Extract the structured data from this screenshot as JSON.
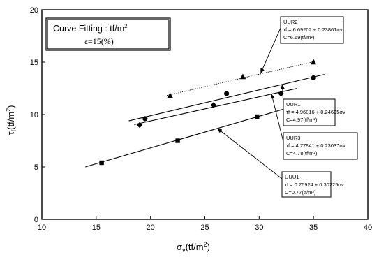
{
  "chart_data": {
    "type": "scatter",
    "title": "Curve Fitting : tf/m²",
    "subtitle": "ε=15(%)",
    "xlabel": "σv(tf/m²)",
    "ylabel": "τf(tf/m²)",
    "xlim": [
      10,
      40
    ],
    "ylim": [
      0,
      20
    ],
    "xticks": [
      "10",
      "15",
      "20",
      "25",
      "30",
      "35",
      "40"
    ],
    "yticks": [
      "0",
      "5",
      "10",
      "15",
      "20"
    ],
    "grid": false,
    "series": [
      {
        "name": "UUR2",
        "marker": "triangle",
        "line_style": "dotted",
        "x": [
          21.8,
          28.5,
          35.0
        ],
        "y": [
          11.8,
          13.6,
          15.0
        ],
        "fit": {
          "intercept": 6.69202,
          "slope": 0.23861,
          "x_range": [
            21.5,
            35.0
          ]
        },
        "equation": "τf = 6.69202 + 0.23861σv",
        "cohesion": "C=6.69(tf/m²)"
      },
      {
        "name": "UUR1",
        "marker": "circle",
        "line_style": "solid",
        "x": [
          19.5,
          27.0,
          35.0
        ],
        "y": [
          9.6,
          12.0,
          13.5
        ],
        "fit": {
          "intercept": 4.96816,
          "slope": 0.24605,
          "x_range": [
            18.0,
            36.0
          ]
        },
        "equation": "τf = 4.96816 + 0.24605σv",
        "cohesion": "C=4.97(tf/m²)"
      },
      {
        "name": "UUR3",
        "marker": "diamond",
        "line_style": "solid",
        "x": [
          19.0,
          25.8,
          32.0
        ],
        "y": [
          9.0,
          10.9,
          12.0
        ],
        "fit": {
          "intercept": 4.77941,
          "slope": 0.23037,
          "x_range": [
            18.5,
            33.5
          ]
        },
        "equation": "τf = 4.77941 + 0.23037σv",
        "cohesion": "C=4.78(tf/m²)"
      },
      {
        "name": "UUU1",
        "marker": "square",
        "line_style": "solid",
        "x": [
          15.5,
          22.5,
          29.8
        ],
        "y": [
          5.4,
          7.5,
          9.8
        ],
        "fit": {
          "intercept": 0.76924,
          "slope": 0.30225,
          "x_range": [
            14.0,
            33.5
          ]
        },
        "equation": "τf = 0.76924 + 0.30225σv",
        "cohesion": "C=0.77(tf/m²)"
      }
    ]
  }
}
